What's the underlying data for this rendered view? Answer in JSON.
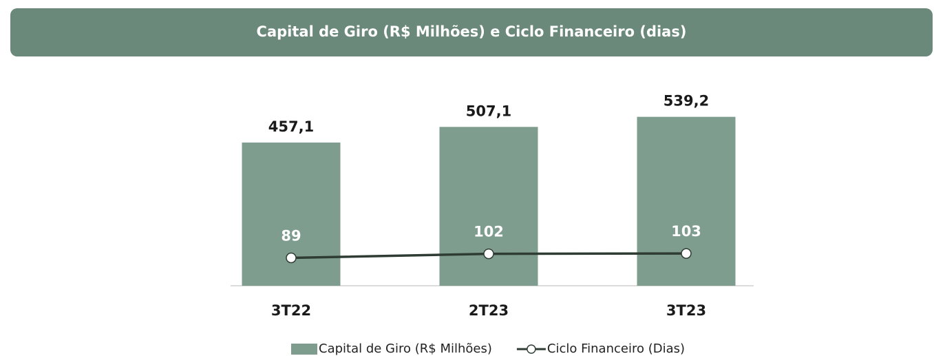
{
  "chart_data": {
    "type": "bar_line",
    "title": "Capital de Giro (R$ Milhões) e Ciclo Financeiro (dias)",
    "categories": [
      "3T22",
      "2T23",
      "3T23"
    ],
    "series": [
      {
        "name": "Capital de Giro (R$ Milhões)",
        "type": "bar",
        "color": "#7f9d8f",
        "values": [
          457.1,
          507.1,
          539.2
        ],
        "value_labels": [
          "457,1",
          "507,1",
          "539,2"
        ]
      },
      {
        "name": "Ciclo Financeiro (Dias)",
        "type": "line",
        "axis": "y2",
        "color": "#2e3c34",
        "values": [
          89,
          102,
          103
        ]
      }
    ],
    "ylim": [
      0,
      600
    ],
    "y2lim": [
      0,
      600
    ],
    "legend": "bottom"
  }
}
